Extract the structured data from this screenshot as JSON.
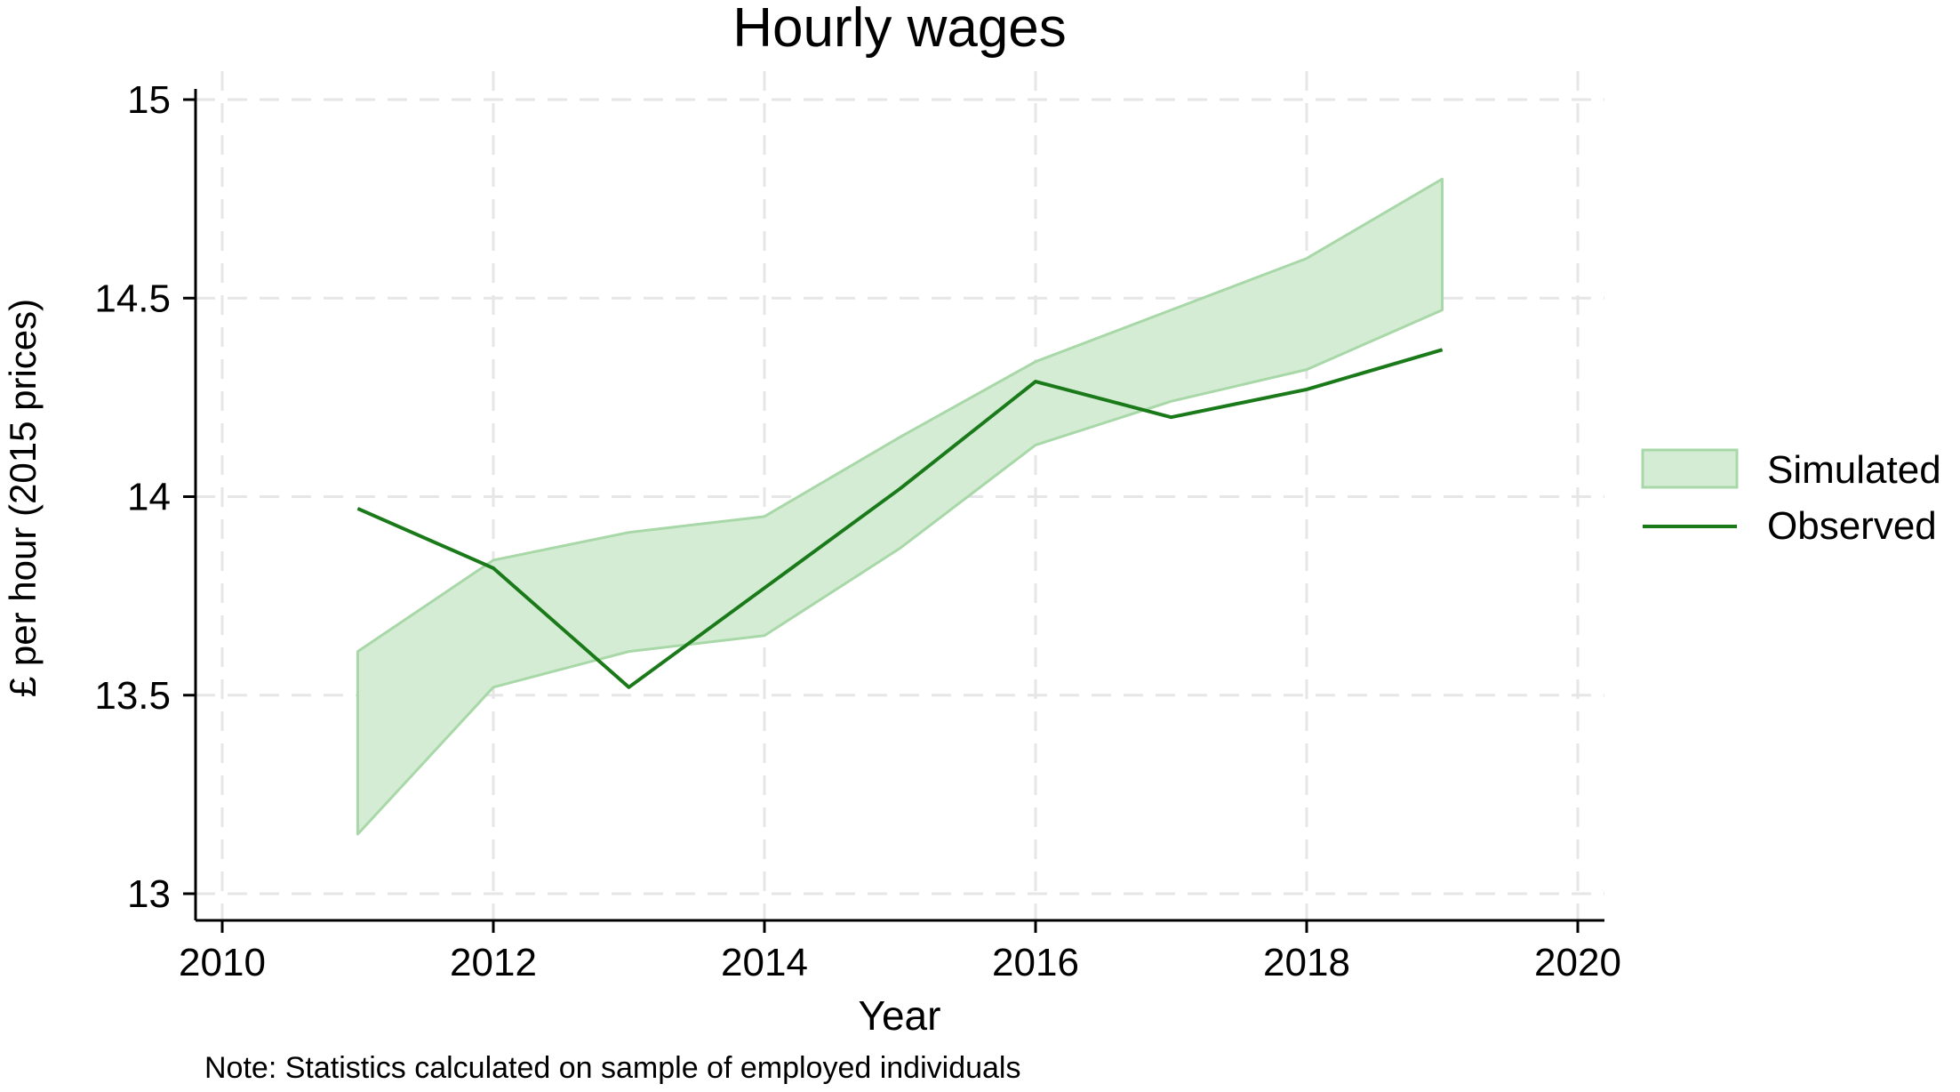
{
  "chart_data": {
    "type": "area",
    "title": "Hourly wages",
    "xlabel": "Year",
    "ylabel": "£ per hour (2015 prices)",
    "note": "Note: Statistics calculated on sample of employed individuals",
    "xlim": [
      2010,
      2020
    ],
    "ylim": [
      13,
      15
    ],
    "xticks": [
      "2010",
      "2012",
      "2014",
      "2016",
      "2018",
      "2020"
    ],
    "yticks": [
      "13",
      "13.5",
      "14",
      "14.5",
      "15"
    ],
    "grid": true,
    "legend_position": "right",
    "x": [
      2011,
      2012,
      2013,
      2014,
      2015,
      2016,
      2017,
      2018,
      2019
    ],
    "series": [
      {
        "name": "Simulated",
        "kind": "band",
        "color": "#a8d8a8",
        "upper": [
          13.61,
          13.84,
          13.91,
          13.95,
          14.15,
          14.34,
          14.47,
          14.6,
          14.8
        ],
        "lower": [
          13.15,
          13.52,
          13.61,
          13.65,
          13.87,
          14.13,
          14.24,
          14.32,
          14.47
        ]
      },
      {
        "name": "Observed",
        "kind": "line",
        "color": "#1a7a1a",
        "values": [
          13.97,
          13.82,
          13.52,
          13.77,
          14.02,
          14.29,
          14.2,
          14.27,
          14.37
        ]
      }
    ]
  }
}
